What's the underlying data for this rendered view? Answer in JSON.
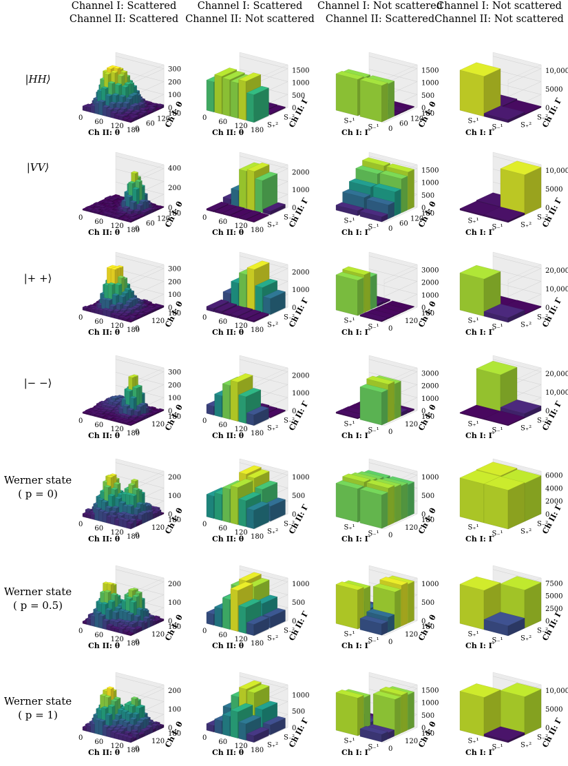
{
  "columns": [
    {
      "line1": "Channel I: Scattered",
      "line2": "Channel II: Scattered"
    },
    {
      "line1": "Channel I: Scattered",
      "line2": "Channel II: Not scattered"
    },
    {
      "line1": "Channel I: Not scattered",
      "line2": "Channel II: Scattered"
    },
    {
      "line1": "Channel I: Not scattered",
      "line2": "Channel II: Not scattered"
    }
  ],
  "rows": [
    {
      "line1": "|HH⟩",
      "line2": ""
    },
    {
      "line1": "|VV⟩",
      "line2": ""
    },
    {
      "line1": "|+ +⟩",
      "line2": ""
    },
    {
      "line1": "|− −⟩",
      "line2": ""
    },
    {
      "line1": "Werner state",
      "line2": "( p = 0)"
    },
    {
      "line1": "Werner state",
      "line2": "( p = 0.5)"
    },
    {
      "line1": "Werner state",
      "line2": "( p = 1)"
    }
  ],
  "axis_text": {
    "ch2_theta": "Ch II: θ",
    "ch1_theta": "Ch I: θ",
    "ch2_gamma": "Ch II: Γ",
    "ch1_gamma": "Ch I: Γ",
    "s1_plus": "S₊¹",
    "s1_minus": "S₋¹",
    "s2_plus": "S₊²",
    "s2_minus": "S₋²"
  },
  "chart_data": [
    {
      "type": "bar3d",
      "state": "|HH⟩",
      "panel": "scattered/scattered",
      "zticks": [
        "0",
        "100",
        "200",
        "300"
      ],
      "zmax": 330,
      "xticks": [
        "0",
        "60",
        "120",
        "180"
      ],
      "yticks": [
        "0",
        "60",
        "120",
        "180"
      ],
      "peaks": [
        {
          "x": 0.35,
          "y": 0.3,
          "h": 300,
          "w": 0.12
        },
        {
          "x": 0.55,
          "y": 0.5,
          "h": 230,
          "w": 0.14
        }
      ],
      "base": 40
    },
    {
      "type": "bar3d",
      "state": "|HH⟩",
      "panel": "scattered/not scattered",
      "zticks": [
        "0",
        "500",
        "1000",
        "1500"
      ],
      "zmax": 1700,
      "xticks": [
        "0",
        "60",
        "120",
        "180"
      ],
      "yticks": [
        "S₊²",
        "S₋²"
      ],
      "rows": [
        [
          1200,
          1500,
          1450,
          1400,
          1550,
          1100
        ],
        [
          60,
          50,
          40,
          60,
          50,
          40
        ]
      ]
    },
    {
      "type": "bar3d",
      "state": "|HH⟩",
      "panel": "not scattered/scattered",
      "zticks": [
        "0",
        "500",
        "1000",
        "1500"
      ],
      "zmax": 1700,
      "xticks": [
        "S₊¹",
        "S₋¹"
      ],
      "yticks": [
        "0",
        "60",
        "120",
        "180"
      ],
      "cols": [
        [
          1450,
          1400,
          50,
          40,
          30
        ],
        [
          1450,
          1400,
          40,
          50,
          30
        ]
      ]
    },
    {
      "type": "bar3d",
      "state": "|HH⟩",
      "panel": "not scattered/not scattered",
      "zticks": [
        "0",
        "5000",
        "10,000"
      ],
      "zmax": 11500,
      "xticks": [
        "S₊¹",
        "S₋¹"
      ],
      "yticks": [
        "S₊²",
        "S₋²"
      ],
      "grid": [
        [
          10800,
          600
        ],
        [
          800,
          300
        ]
      ]
    },
    {
      "type": "bar3d",
      "state": "|VV⟩",
      "panel": "scattered/scattered",
      "zticks": [
        "0",
        "200",
        "400"
      ],
      "zmax": 430,
      "xticks": [
        "0",
        "60",
        "120",
        "180"
      ],
      "yticks": [
        "0",
        "60",
        "120",
        "180"
      ],
      "peaks": [
        {
          "x": 0.72,
          "y": 0.55,
          "h": 380,
          "w": 0.1
        }
      ],
      "base": 30
    },
    {
      "type": "bar3d",
      "state": "|VV⟩",
      "panel": "scattered/not scattered",
      "zticks": [
        "0",
        "1000",
        "2000"
      ],
      "zmax": 2400,
      "xticks": [
        "0",
        "60",
        "120",
        "180"
      ],
      "yticks": [
        "S₊²",
        "S₋²"
      ],
      "rows": [
        [
          80,
          60,
          70,
          50,
          60,
          40
        ],
        [
          300,
          900,
          2100,
          2200,
          1800,
          200
        ]
      ]
    },
    {
      "type": "bar3d",
      "state": "|VV⟩",
      "panel": "not scattered/scattered",
      "zticks": [
        "0",
        "500",
        "1000",
        "1500"
      ],
      "zmax": 1700,
      "xticks": [
        "S₊¹",
        "S₋¹"
      ],
      "yticks": [
        "0",
        "60",
        "120",
        "180"
      ],
      "cols": [
        [
          200,
          600,
          900,
          1300,
          1500
        ],
        [
          200,
          550,
          950,
          1350,
          1500
        ]
      ]
    },
    {
      "type": "bar3d",
      "state": "|VV⟩",
      "panel": "not scattered/not scattered",
      "zticks": [
        "0",
        "5000",
        "10,000"
      ],
      "zmax": 11500,
      "xticks": [
        "S₊¹",
        "S₋¹"
      ],
      "yticks": [
        "S₊²",
        "S₋²"
      ],
      "grid": [
        [
          400,
          600
        ],
        [
          500,
          10800
        ]
      ]
    },
    {
      "type": "bar3d",
      "state": "|+ +⟩",
      "panel": "scattered/scattered",
      "zticks": [
        "0",
        "100",
        "200",
        "300"
      ],
      "zmax": 330,
      "xticks": [
        "0",
        "60",
        "120",
        "180"
      ],
      "yticks": [
        "0",
        "120",
        "180"
      ],
      "peaks": [
        {
          "x": 0.4,
          "y": 0.35,
          "h": 310,
          "w": 0.1
        },
        {
          "x": 0.55,
          "y": 0.45,
          "h": 150,
          "w": 0.15
        }
      ],
      "base": 30
    },
    {
      "type": "bar3d",
      "state": "|+ +⟩",
      "panel": "scattered/not scattered",
      "zticks": [
        "0",
        "1000",
        "2000"
      ],
      "zmax": 2400,
      "xticks": [
        "0",
        "60",
        "120",
        "180"
      ],
      "yticks": [
        "S₊²",
        "S₋²"
      ],
      "rows": [
        [
          200,
          150,
          100,
          120,
          100,
          80
        ],
        [
          600,
          1300,
          1900,
          2300,
          1400,
          900
        ]
      ]
    },
    {
      "type": "bar3d",
      "state": "|+ +⟩",
      "panel": "not scattered/scattered",
      "zticks": [
        "0",
        "1000",
        "2000",
        "3000"
      ],
      "zmax": 3400,
      "xticks": [
        "S₊¹",
        "S₋¹"
      ],
      "yticks": [
        "0",
        "120",
        "180"
      ],
      "cols": [
        [
          2800,
          3000,
          2600,
          200,
          100
        ],
        [
          100,
          80,
          60,
          50,
          40
        ]
      ]
    },
    {
      "type": "bar3d",
      "state": "|+ +⟩",
      "panel": "not scattered/not scattered",
      "zticks": [
        "0",
        "10,000",
        "20,000"
      ],
      "zmax": 23000,
      "xticks": [
        "S₊¹",
        "S₋¹"
      ],
      "yticks": [
        "S₊²",
        "S₋²"
      ],
      "grid": [
        [
          20000,
          400
        ],
        [
          2500,
          500
        ]
      ]
    },
    {
      "type": "bar3d",
      "state": "|− −⟩",
      "panel": "scattered/scattered",
      "zticks": [
        "0",
        "100",
        "200",
        "300"
      ],
      "zmax": 330,
      "xticks": [
        "0",
        "60",
        "120",
        "180"
      ],
      "yticks": [
        "0",
        "120",
        "180"
      ],
      "peaks": [
        {
          "x": 0.72,
          "y": 0.5,
          "h": 300,
          "w": 0.1
        },
        {
          "x": 0.3,
          "y": 0.6,
          "h": 80,
          "w": 0.15
        }
      ],
      "base": 20
    },
    {
      "type": "bar3d",
      "state": "|− −⟩",
      "panel": "scattered/not scattered",
      "zticks": [
        "0",
        "1000",
        "2000"
      ],
      "zmax": 2400,
      "xticks": [
        "0",
        "60",
        "120",
        "180"
      ],
      "yticks": [
        "S₊²",
        "S₋²"
      ],
      "rows": [
        [
          500,
          1200,
          1900,
          2200,
          1500,
          600
        ],
        [
          100,
          120,
          80,
          100,
          60,
          50
        ]
      ]
    },
    {
      "type": "bar3d",
      "state": "|− −⟩",
      "panel": "not scattered/scattered",
      "zticks": [
        "0",
        "1000",
        "2000",
        "3000"
      ],
      "zmax": 3400,
      "xticks": [
        "S₊¹",
        "S₋¹"
      ],
      "yticks": [
        "0",
        "120",
        "180"
      ],
      "cols": [
        [
          100,
          90,
          60,
          50,
          40
        ],
        [
          2600,
          3000,
          2800,
          300,
          100
        ]
      ]
    },
    {
      "type": "bar3d",
      "state": "|− −⟩",
      "panel": "not scattered/not scattered",
      "zticks": [
        "0",
        "10,000",
        "20,000"
      ],
      "zmax": 23000,
      "xticks": [
        "S₊¹",
        "S₋¹"
      ],
      "yticks": [
        "S₊²",
        "S₋²"
      ],
      "grid": [
        [
          400,
          20000
        ],
        [
          500,
          2500
        ]
      ]
    },
    {
      "type": "bar3d",
      "state": "Werner state ( p = 0)",
      "panel": "scattered/scattered",
      "zticks": [
        "0",
        "100",
        "200"
      ],
      "zmax": 230,
      "xticks": [
        "0",
        "60",
        "120",
        "180"
      ],
      "yticks": [
        "0",
        "120",
        "180"
      ],
      "peaks": [
        {
          "x": 0.35,
          "y": 0.35,
          "h": 210,
          "w": 0.12
        },
        {
          "x": 0.72,
          "y": 0.5,
          "h": 180,
          "w": 0.12
        }
      ],
      "base": 50
    },
    {
      "type": "bar3d",
      "state": "Werner state ( p = 0)",
      "panel": "scattered/not scattered",
      "zticks": [
        "0",
        "500",
        "1000"
      ],
      "zmax": 1150,
      "xticks": [
        "0",
        "60",
        "120",
        "180"
      ],
      "yticks": [
        "S₊²",
        "S₋²"
      ],
      "rows": [
        [
          600,
          700,
          900,
          1000,
          700,
          500
        ],
        [
          400,
          600,
          1100,
          1050,
          800,
          400
        ]
      ]
    },
    {
      "type": "bar3d",
      "state": "Werner state ( p = 0)",
      "panel": "not scattered/scattered",
      "zticks": [
        "0",
        "500",
        "1000"
      ],
      "zmax": 1150,
      "xticks": [
        "S₊¹",
        "S₋¹"
      ],
      "yticks": [
        "0",
        "120",
        "180"
      ],
      "cols": [
        [
          900,
          1000,
          950,
          900,
          850
        ],
        [
          900,
          1000,
          950,
          900,
          850
        ]
      ]
    },
    {
      "type": "bar3d",
      "state": "Werner state ( p = 0)",
      "panel": "not scattered/not scattered",
      "zticks": [
        "0",
        "2000",
        "4000",
        "6000"
      ],
      "zmax": 6600,
      "xticks": [
        "S₊¹",
        "S₋¹"
      ],
      "yticks": [
        "S₊²",
        "S₋²"
      ],
      "grid": [
        [
          6000,
          6100
        ],
        [
          6000,
          5900
        ]
      ]
    },
    {
      "type": "bar3d",
      "state": "Werner state ( p = 0.5)",
      "panel": "scattered/scattered",
      "zticks": [
        "0",
        "100",
        "200"
      ],
      "zmax": 230,
      "xticks": [
        "0",
        "60",
        "120",
        "180"
      ],
      "yticks": [
        "0",
        "120",
        "180"
      ],
      "peaks": [
        {
          "x": 0.35,
          "y": 0.3,
          "h": 210,
          "w": 0.12
        },
        {
          "x": 0.72,
          "y": 0.5,
          "h": 190,
          "w": 0.12
        }
      ],
      "base": 40
    },
    {
      "type": "bar3d",
      "state": "Werner state ( p = 0.5)",
      "panel": "scattered/not scattered",
      "zticks": [
        "0",
        "500",
        "1000"
      ],
      "zmax": 1150,
      "xticks": [
        "0",
        "60",
        "120",
        "180"
      ],
      "yticks": [
        "S₊²",
        "S₋²"
      ],
      "rows": [
        [
          300,
          500,
          800,
          1100,
          700,
          300
        ],
        [
          500,
          900,
          1100,
          1000,
          600,
          300
        ]
      ]
    },
    {
      "type": "bar3d",
      "state": "Werner state ( p = 0.5)",
      "panel": "not scattered/scattered",
      "zticks": [
        "0",
        "500",
        "1000"
      ],
      "zmax": 1150,
      "xticks": [
        "S₊¹",
        "S₋¹"
      ],
      "yticks": [
        "0",
        "120",
        "180"
      ],
      "cols": [
        [
          1050,
          1000,
          400,
          300,
          200
        ],
        [
          300,
          400,
          1000,
          1100,
          1050
        ]
      ]
    },
    {
      "type": "bar3d",
      "state": "Werner state ( p = 0.5)",
      "panel": "not scattered/not scattered",
      "zticks": [
        "0",
        "2500",
        "5000",
        "7500"
      ],
      "zmax": 8500,
      "xticks": [
        "S₊¹",
        "S₋¹"
      ],
      "yticks": [
        "S₊²",
        "S₋²"
      ],
      "grid": [
        [
          7800,
          1800
        ],
        [
          2000,
          7600
        ]
      ]
    },
    {
      "type": "bar3d",
      "state": "Werner state ( p = 1)",
      "panel": "scattered/scattered",
      "zticks": [
        "0",
        "100",
        "200"
      ],
      "zmax": 230,
      "xticks": [
        "0",
        "60",
        "120",
        "180"
      ],
      "yticks": [
        "0",
        "120",
        "180"
      ],
      "peaks": [
        {
          "x": 0.35,
          "y": 0.3,
          "h": 220,
          "w": 0.12
        },
        {
          "x": 0.7,
          "y": 0.55,
          "h": 150,
          "w": 0.13
        }
      ],
      "base": 40
    },
    {
      "type": "bar3d",
      "state": "Werner state ( p = 1)",
      "panel": "scattered/not scattered",
      "zticks": [
        "0",
        "500",
        "1000"
      ],
      "zmax": 1300,
      "xticks": [
        "0",
        "60",
        "120",
        "180"
      ],
      "yticks": [
        "S₊²",
        "S₋²"
      ],
      "rows": [
        [
          200,
          400,
          600,
          800,
          500,
          200
        ],
        [
          500,
          900,
          1200,
          1150,
          700,
          300
        ]
      ]
    },
    {
      "type": "bar3d",
      "state": "Werner state ( p = 1)",
      "panel": "not scattered/scattered",
      "zticks": [
        "0",
        "500",
        "1000",
        "1500"
      ],
      "zmax": 1700,
      "xticks": [
        "S₊¹",
        "S₋¹"
      ],
      "yticks": [
        "0",
        "120",
        "180"
      ],
      "cols": [
        [
          1500,
          1400,
          300,
          200,
          100
        ],
        [
          300,
          250,
          1450,
          1500,
          1400
        ]
      ]
    },
    {
      "type": "bar3d",
      "state": "Werner state ( p = 1)",
      "panel": "not scattered/not scattered",
      "zticks": [
        "0",
        "5000",
        "10,000"
      ],
      "zmax": 11500,
      "xticks": [
        "S₊¹",
        "S₋¹"
      ],
      "yticks": [
        "S₊²",
        "S₋²"
      ],
      "grid": [
        [
          10500,
          400
        ],
        [
          600,
          10300
        ]
      ]
    }
  ]
}
